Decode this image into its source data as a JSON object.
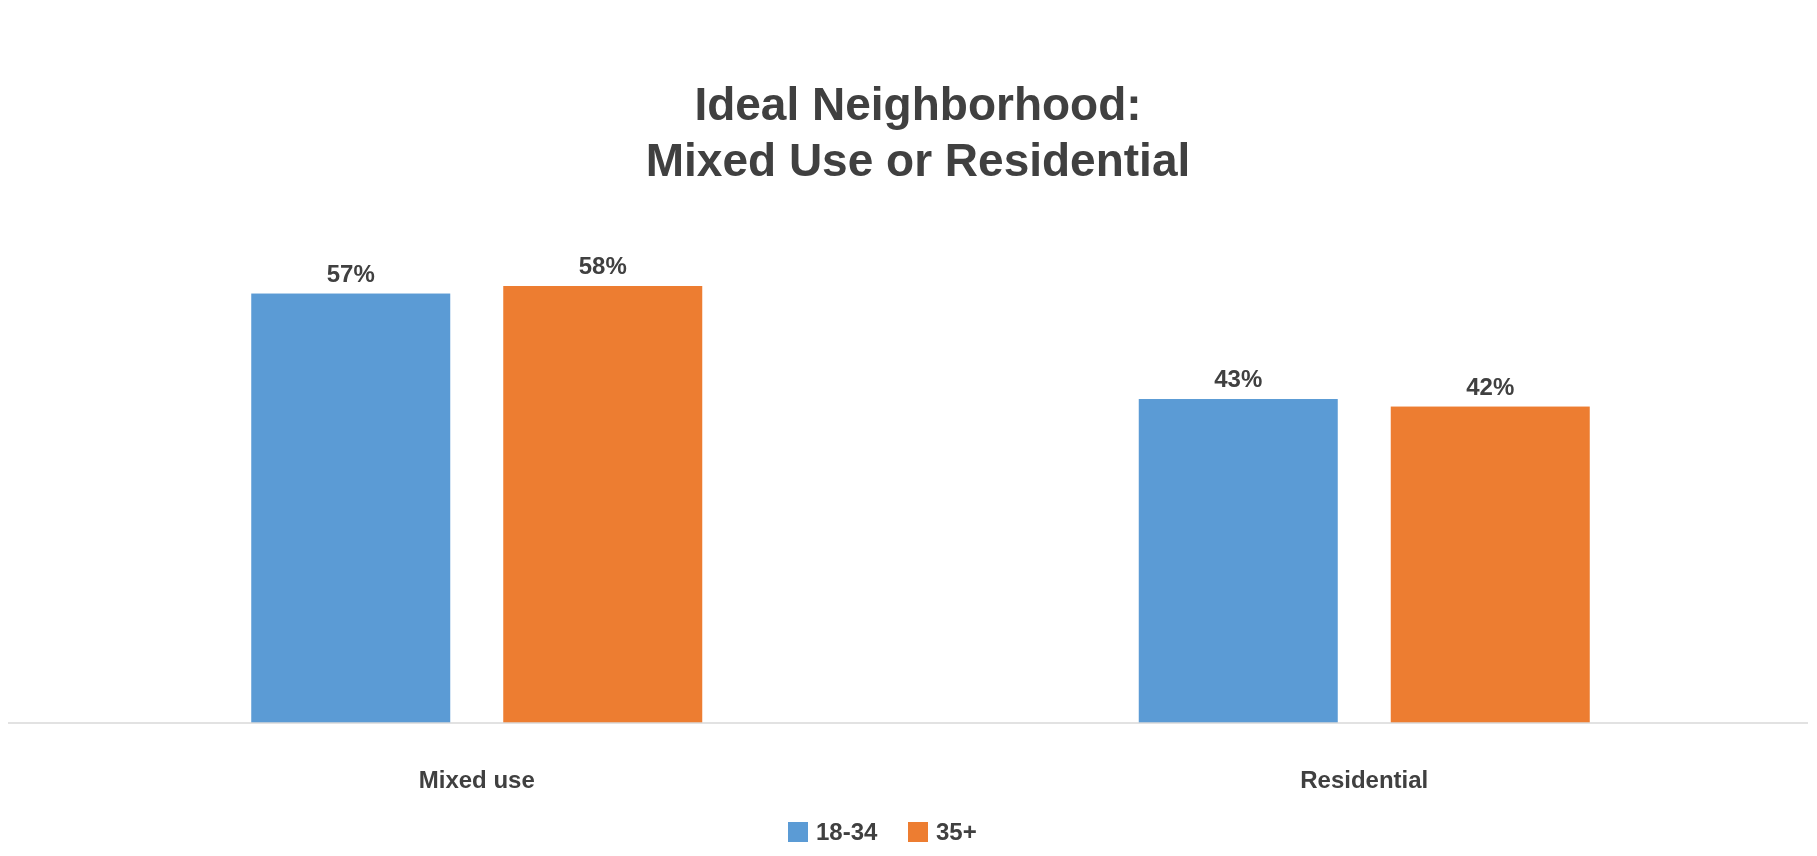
{
  "chart_data": {
    "type": "bar",
    "title": "Ideal Neighborhood:\nMixed Use or Residential",
    "categories": [
      "Mixed use",
      "Residential"
    ],
    "series": [
      {
        "name": "18-34",
        "color": "#5b9bd5",
        "values": [
          57,
          43
        ],
        "value_labels": [
          "57%",
          "43%"
        ]
      },
      {
        "name": "35+",
        "color": "#ed7d31",
        "values": [
          58,
          42
        ],
        "value_labels": [
          "58%",
          "42%"
        ]
      }
    ],
    "legend": "bottom"
  }
}
